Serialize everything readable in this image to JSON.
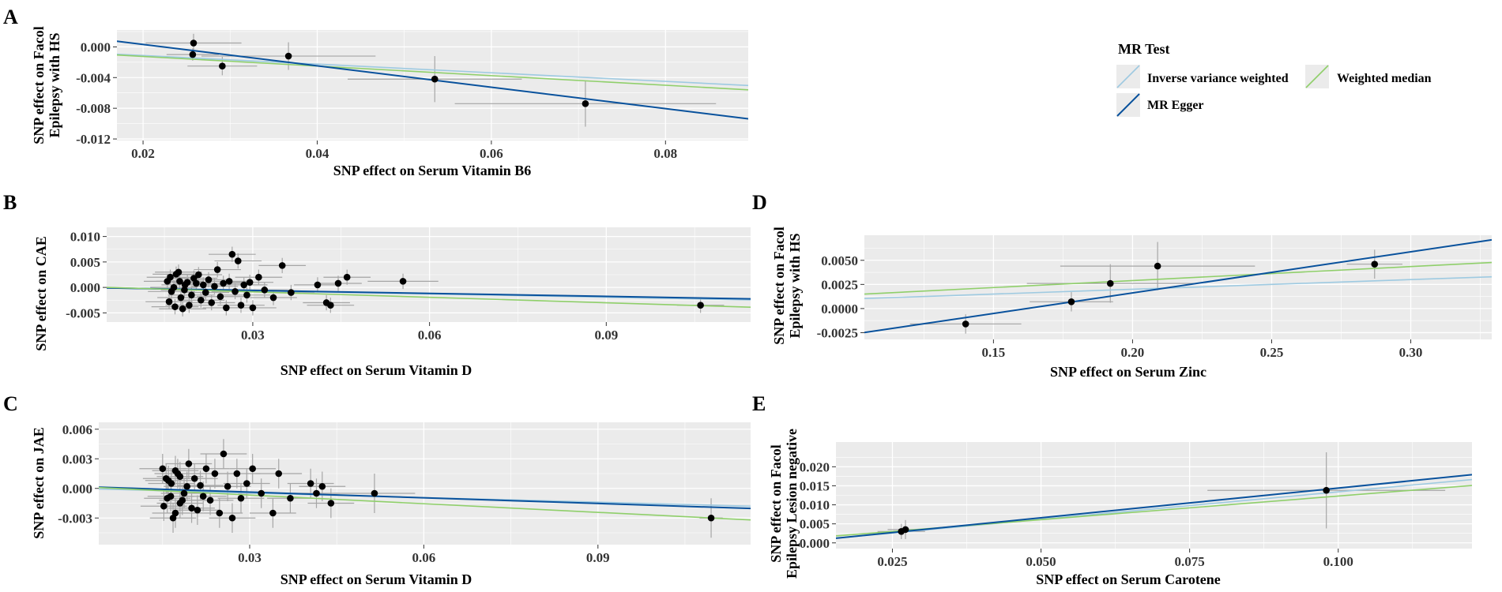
{
  "legend": {
    "title": "MR Test",
    "items": [
      {
        "label": "Inverse variance weighted",
        "color": "#9ecae1"
      },
      {
        "label": "MR Egger",
        "color": "#08519c"
      },
      {
        "label": "Weighted median",
        "color": "#8fcf6a"
      }
    ]
  },
  "colors": {
    "panel_bg": "#ebebeb",
    "grid": "#ffffff",
    "point": "#000000",
    "errorbar": "#a6a6a6"
  },
  "chart_data": [
    {
      "panel": "A",
      "type": "scatter",
      "xlabel": "SNP effect on Serum Vitamin B6",
      "ylabel": [
        "SNP effect on Facol",
        "Epilepsy with HS"
      ],
      "xlim": [
        0.017,
        0.0895
      ],
      "ylim": [
        -0.0122,
        0.0022
      ],
      "xticks": [
        0.02,
        0.04,
        0.06,
        0.08
      ],
      "xtick_labels": [
        "0.02",
        "0.04",
        "0.06",
        "0.08"
      ],
      "yticks": [
        0.0,
        -0.004,
        -0.008,
        -0.012
      ],
      "ytick_labels": [
        "0.000",
        "-0.004",
        "-0.008",
        "-0.012"
      ],
      "points": [
        {
          "x": 0.0258,
          "y": 0.0005,
          "xerr": 0.0055,
          "yerr": 0.0012
        },
        {
          "x": 0.0257,
          "y": -0.001,
          "xerr": 0.003,
          "yerr": 0.0008
        },
        {
          "x": 0.0291,
          "y": -0.0025,
          "xerr": 0.004,
          "yerr": 0.0012
        },
        {
          "x": 0.0367,
          "y": -0.0012,
          "xerr": 0.01,
          "yerr": 0.0018
        },
        {
          "x": 0.0535,
          "y": -0.0042,
          "xerr": 0.01,
          "yerr": 0.003
        },
        {
          "x": 0.0708,
          "y": -0.0074,
          "xerr": 0.015,
          "yerr": 0.003
        }
      ],
      "lines": [
        {
          "method": "Inverse variance weighted",
          "slope": -0.0562,
          "intercept": 0.0
        },
        {
          "method": "Weighted median",
          "slope": -0.0625,
          "intercept": 0.0
        },
        {
          "method": "MR Egger",
          "slope": -0.1393,
          "intercept": 0.0031
        }
      ]
    },
    {
      "panel": "B",
      "type": "scatter",
      "xlabel": "SNP effect on Serum Vitamin D",
      "ylabel": [
        "SNP effect on CAE"
      ],
      "xlim": [
        0.0052,
        0.1145
      ],
      "ylim": [
        -0.0068,
        0.0118
      ],
      "xticks": [
        0.03,
        0.06,
        0.09
      ],
      "xtick_labels": [
        "0.03",
        "0.06",
        "0.09"
      ],
      "yticks": [
        0.01,
        0.005,
        0.0,
        -0.005
      ],
      "ytick_labels": [
        "0.010",
        "0.005",
        "0.000",
        "-0.005"
      ],
      "points": [
        {
          "x": 0.0155,
          "y": 0.0012,
          "xerr": 0.004,
          "yerr": 0.0015
        },
        {
          "x": 0.0162,
          "y": -0.0008,
          "xerr": 0.004,
          "yerr": 0.0015
        },
        {
          "x": 0.017,
          "y": 0.0026,
          "xerr": 0.004,
          "yerr": 0.0015
        },
        {
          "x": 0.0178,
          "y": -0.002,
          "xerr": 0.004,
          "yerr": 0.0015
        },
        {
          "x": 0.0185,
          "y": 0.0005,
          "xerr": 0.004,
          "yerr": 0.0015
        },
        {
          "x": 0.0192,
          "y": -0.0035,
          "xerr": 0.004,
          "yerr": 0.0015
        },
        {
          "x": 0.02,
          "y": 0.0018,
          "xerr": 0.004,
          "yerr": 0.0015
        },
        {
          "x": 0.0158,
          "y": -0.0028,
          "xerr": 0.004,
          "yerr": 0.0015
        },
        {
          "x": 0.0166,
          "y": 0.0,
          "xerr": 0.004,
          "yerr": 0.0015
        },
        {
          "x": 0.0174,
          "y": 0.003,
          "xerr": 0.004,
          "yerr": 0.0015
        },
        {
          "x": 0.0181,
          "y": -0.0042,
          "xerr": 0.004,
          "yerr": 0.0015
        },
        {
          "x": 0.0189,
          "y": 0.001,
          "xerr": 0.004,
          "yerr": 0.0015
        },
        {
          "x": 0.0196,
          "y": -0.0015,
          "xerr": 0.004,
          "yerr": 0.0015
        },
        {
          "x": 0.0204,
          "y": 0.0008,
          "xerr": 0.004,
          "yerr": 0.0015
        },
        {
          "x": 0.016,
          "y": 0.002,
          "xerr": 0.004,
          "yerr": 0.0015
        },
        {
          "x": 0.0168,
          "y": -0.0038,
          "xerr": 0.004,
          "yerr": 0.0015
        },
        {
          "x": 0.0176,
          "y": 0.0012,
          "xerr": 0.004,
          "yerr": 0.0015
        },
        {
          "x": 0.0184,
          "y": -0.0005,
          "xerr": 0.004,
          "yerr": 0.0015
        },
        {
          "x": 0.0208,
          "y": 0.0025,
          "xerr": 0.004,
          "yerr": 0.0015
        },
        {
          "x": 0.0212,
          "y": -0.0025,
          "xerr": 0.004,
          "yerr": 0.0015
        },
        {
          "x": 0.0216,
          "y": 0.0005,
          "xerr": 0.004,
          "yerr": 0.0015
        },
        {
          "x": 0.022,
          "y": -0.001,
          "xerr": 0.004,
          "yerr": 0.0015
        },
        {
          "x": 0.0225,
          "y": 0.0015,
          "xerr": 0.004,
          "yerr": 0.0015
        },
        {
          "x": 0.023,
          "y": -0.003,
          "xerr": 0.004,
          "yerr": 0.0015
        },
        {
          "x": 0.0235,
          "y": 0.0002,
          "xerr": 0.004,
          "yerr": 0.0015
        },
        {
          "x": 0.024,
          "y": 0.0035,
          "xerr": 0.004,
          "yerr": 0.0015
        },
        {
          "x": 0.0245,
          "y": -0.0018,
          "xerr": 0.004,
          "yerr": 0.0015
        },
        {
          "x": 0.025,
          "y": 0.0008,
          "xerr": 0.004,
          "yerr": 0.0015
        },
        {
          "x": 0.0255,
          "y": -0.004,
          "xerr": 0.004,
          "yerr": 0.0015
        },
        {
          "x": 0.026,
          "y": 0.0012,
          "xerr": 0.004,
          "yerr": 0.0015
        },
        {
          "x": 0.0265,
          "y": 0.0065,
          "xerr": 0.004,
          "yerr": 0.0015
        },
        {
          "x": 0.027,
          "y": -0.0008,
          "xerr": 0.004,
          "yerr": 0.0015
        },
        {
          "x": 0.0275,
          "y": 0.0052,
          "xerr": 0.004,
          "yerr": 0.0015
        },
        {
          "x": 0.028,
          "y": -0.0035,
          "xerr": 0.004,
          "yerr": 0.0015
        },
        {
          "x": 0.0285,
          "y": 0.0005,
          "xerr": 0.004,
          "yerr": 0.0015
        },
        {
          "x": 0.029,
          "y": -0.0015,
          "xerr": 0.004,
          "yerr": 0.0015
        },
        {
          "x": 0.0295,
          "y": 0.001,
          "xerr": 0.004,
          "yerr": 0.0015
        },
        {
          "x": 0.03,
          "y": -0.004,
          "xerr": 0.004,
          "yerr": 0.0015
        },
        {
          "x": 0.031,
          "y": 0.002,
          "xerr": 0.004,
          "yerr": 0.0015
        },
        {
          "x": 0.032,
          "y": -0.0005,
          "xerr": 0.004,
          "yerr": 0.0015
        },
        {
          "x": 0.0335,
          "y": -0.002,
          "xerr": 0.004,
          "yerr": 0.0015
        },
        {
          "x": 0.035,
          "y": 0.0043,
          "xerr": 0.004,
          "yerr": 0.0015
        },
        {
          "x": 0.0365,
          "y": -0.001,
          "xerr": 0.004,
          "yerr": 0.0015
        },
        {
          "x": 0.041,
          "y": 0.0005,
          "xerr": 0.004,
          "yerr": 0.0015
        },
        {
          "x": 0.0425,
          "y": -0.003,
          "xerr": 0.004,
          "yerr": 0.0015
        },
        {
          "x": 0.0432,
          "y": -0.0035,
          "xerr": 0.004,
          "yerr": 0.0015
        },
        {
          "x": 0.0445,
          "y": 0.0008,
          "xerr": 0.004,
          "yerr": 0.0015
        },
        {
          "x": 0.046,
          "y": 0.002,
          "xerr": 0.004,
          "yerr": 0.0015
        },
        {
          "x": 0.0555,
          "y": 0.0012,
          "xerr": 0.006,
          "yerr": 0.0015
        },
        {
          "x": 0.106,
          "y": -0.0035,
          "xerr": 0.004,
          "yerr": 0.0015
        }
      ],
      "lines": [
        {
          "method": "Inverse variance weighted",
          "slope": -0.0214,
          "intercept": 0.0
        },
        {
          "method": "MR Egger",
          "slope": -0.0196,
          "intercept": 0.0
        },
        {
          "method": "Weighted median",
          "slope": -0.0357,
          "intercept": 0.0002
        }
      ]
    },
    {
      "panel": "C",
      "type": "scatter",
      "xlabel": "SNP effect on Serum Vitamin D",
      "ylabel": [
        "SNP effect on JAE"
      ],
      "xlim": [
        0.004,
        0.1163
      ],
      "ylim": [
        -0.0057,
        0.0067
      ],
      "xticks": [
        0.03,
        0.06,
        0.09
      ],
      "xtick_labels": [
        "0.03",
        "0.06",
        "0.09"
      ],
      "yticks": [
        0.006,
        0.003,
        0.0,
        -0.003
      ],
      "ytick_labels": [
        "0.006",
        "0.003",
        "0.000",
        "-0.003"
      ],
      "points": [
        {
          "x": 0.015,
          "y": 0.002,
          "xerr": 0.004,
          "yerr": 0.0015
        },
        {
          "x": 0.0158,
          "y": -0.001,
          "xerr": 0.004,
          "yerr": 0.0015
        },
        {
          "x": 0.0165,
          "y": 0.0005,
          "xerr": 0.004,
          "yerr": 0.0015
        },
        {
          "x": 0.0172,
          "y": -0.0025,
          "xerr": 0.004,
          "yerr": 0.0015
        },
        {
          "x": 0.018,
          "y": 0.0012,
          "xerr": 0.004,
          "yerr": 0.0015
        },
        {
          "x": 0.0187,
          "y": -0.0005,
          "xerr": 0.004,
          "yerr": 0.0015
        },
        {
          "x": 0.0195,
          "y": 0.0025,
          "xerr": 0.004,
          "yerr": 0.0015
        },
        {
          "x": 0.0152,
          "y": -0.0018,
          "xerr": 0.004,
          "yerr": 0.0015
        },
        {
          "x": 0.016,
          "y": 0.0008,
          "xerr": 0.004,
          "yerr": 0.0015
        },
        {
          "x": 0.0168,
          "y": -0.003,
          "xerr": 0.004,
          "yerr": 0.0015
        },
        {
          "x": 0.0176,
          "y": 0.0015,
          "xerr": 0.004,
          "yerr": 0.0015
        },
        {
          "x": 0.0184,
          "y": -0.0012,
          "xerr": 0.004,
          "yerr": 0.0015
        },
        {
          "x": 0.0192,
          "y": 0.0002,
          "xerr": 0.004,
          "yerr": 0.0015
        },
        {
          "x": 0.02,
          "y": -0.002,
          "xerr": 0.004,
          "yerr": 0.0015
        },
        {
          "x": 0.0156,
          "y": 0.001,
          "xerr": 0.004,
          "yerr": 0.0015
        },
        {
          "x": 0.0164,
          "y": -0.0008,
          "xerr": 0.004,
          "yerr": 0.0015
        },
        {
          "x": 0.0172,
          "y": 0.0018,
          "xerr": 0.004,
          "yerr": 0.0015
        },
        {
          "x": 0.018,
          "y": -0.0015,
          "xerr": 0.004,
          "yerr": 0.0015
        },
        {
          "x": 0.0205,
          "y": 0.001,
          "xerr": 0.004,
          "yerr": 0.0015
        },
        {
          "x": 0.021,
          "y": -0.0022,
          "xerr": 0.004,
          "yerr": 0.0015
        },
        {
          "x": 0.0215,
          "y": 0.0003,
          "xerr": 0.004,
          "yerr": 0.0015
        },
        {
          "x": 0.022,
          "y": -0.0008,
          "xerr": 0.004,
          "yerr": 0.0015
        },
        {
          "x": 0.0225,
          "y": 0.002,
          "xerr": 0.004,
          "yerr": 0.0015
        },
        {
          "x": 0.0232,
          "y": -0.0012,
          "xerr": 0.004,
          "yerr": 0.0015
        },
        {
          "x": 0.024,
          "y": 0.0015,
          "xerr": 0.004,
          "yerr": 0.0015
        },
        {
          "x": 0.0248,
          "y": -0.0025,
          "xerr": 0.004,
          "yerr": 0.0015
        },
        {
          "x": 0.0255,
          "y": 0.0035,
          "xerr": 0.004,
          "yerr": 0.0015
        },
        {
          "x": 0.0262,
          "y": 0.0002,
          "xerr": 0.004,
          "yerr": 0.0015
        },
        {
          "x": 0.027,
          "y": -0.003,
          "xerr": 0.004,
          "yerr": 0.0015
        },
        {
          "x": 0.0278,
          "y": 0.0015,
          "xerr": 0.004,
          "yerr": 0.0015
        },
        {
          "x": 0.0285,
          "y": -0.001,
          "xerr": 0.004,
          "yerr": 0.0015
        },
        {
          "x": 0.0295,
          "y": 0.0005,
          "xerr": 0.004,
          "yerr": 0.0015
        },
        {
          "x": 0.0305,
          "y": 0.002,
          "xerr": 0.004,
          "yerr": 0.0015
        },
        {
          "x": 0.032,
          "y": -0.0005,
          "xerr": 0.004,
          "yerr": 0.0015
        },
        {
          "x": 0.034,
          "y": -0.0025,
          "xerr": 0.004,
          "yerr": 0.0015
        },
        {
          "x": 0.035,
          "y": 0.0015,
          "xerr": 0.004,
          "yerr": 0.0015
        },
        {
          "x": 0.037,
          "y": -0.001,
          "xerr": 0.004,
          "yerr": 0.0015
        },
        {
          "x": 0.0405,
          "y": 0.0005,
          "xerr": 0.004,
          "yerr": 0.0015
        },
        {
          "x": 0.0415,
          "y": -0.0005,
          "xerr": 0.004,
          "yerr": 0.0015
        },
        {
          "x": 0.0425,
          "y": 0.0002,
          "xerr": 0.004,
          "yerr": 0.0015
        },
        {
          "x": 0.044,
          "y": -0.0015,
          "xerr": 0.004,
          "yerr": 0.0015
        },
        {
          "x": 0.0515,
          "y": -0.0005,
          "xerr": 0.007,
          "yerr": 0.002
        },
        {
          "x": 0.1095,
          "y": -0.003,
          "xerr": 0.002,
          "yerr": 0.002
        }
      ],
      "lines": [
        {
          "method": "Inverse variance weighted",
          "slope": -0.0155,
          "intercept": 0.0
        },
        {
          "method": "MR Egger",
          "slope": -0.0192,
          "intercept": 0.0002
        },
        {
          "method": "Weighted median",
          "slope": -0.0292,
          "intercept": 0.0002
        }
      ]
    },
    {
      "panel": "D",
      "type": "scatter",
      "xlabel": "SNP effect on Serum Zinc",
      "ylabel": [
        "SNP effect on Facol",
        "Epilepsy with HS"
      ],
      "xlim": [
        0.1036,
        0.3291
      ],
      "ylim": [
        -0.0032,
        0.0076
      ],
      "xticks": [
        0.15,
        0.2,
        0.25,
        0.3
      ],
      "xtick_labels": [
        "0.15",
        "0.20",
        "0.25",
        "0.30"
      ],
      "yticks": [
        0.005,
        0.0025,
        0.0,
        -0.0025
      ],
      "ytick_labels": [
        "0.0050",
        "0.0025",
        "0.0000",
        "-0.0025"
      ],
      "points": [
        {
          "x": 0.14,
          "y": -0.0016,
          "xerr": 0.02,
          "yerr": 0.001
        },
        {
          "x": 0.178,
          "y": 0.0007,
          "xerr": 0.015,
          "yerr": 0.001
        },
        {
          "x": 0.192,
          "y": 0.0026,
          "xerr": 0.03,
          "yerr": 0.002
        },
        {
          "x": 0.209,
          "y": 0.0044,
          "xerr": 0.035,
          "yerr": 0.0025
        },
        {
          "x": 0.287,
          "y": 0.0046,
          "xerr": 0.01,
          "yerr": 0.0015
        }
      ],
      "lines": [
        {
          "method": "Inverse variance weighted",
          "slope": 0.01,
          "intercept": 0.0
        },
        {
          "method": "Weighted median",
          "slope": 0.0145,
          "intercept": 0.0
        },
        {
          "method": "MR Egger",
          "slope": 0.0426,
          "intercept": -0.0069
        }
      ]
    },
    {
      "panel": "E",
      "type": "scatter",
      "xlabel": "SNP effect on Serum Carotene",
      "ylabel": [
        "SNP effect on Facol",
        "Epilepsy Lesion negative"
      ],
      "xlim": [
        0.0155,
        0.1225
      ],
      "ylim": [
        -0.0015,
        0.0265
      ],
      "xticks": [
        0.025,
        0.05,
        0.075,
        0.1
      ],
      "xtick_labels": [
        "0.025",
        "0.050",
        "0.075",
        "0.100"
      ],
      "yticks": [
        0.02,
        0.015,
        0.01,
        0.005,
        0.0
      ],
      "ytick_labels": [
        "0.020",
        "0.015",
        "0.010",
        "0.005",
        "0.000"
      ],
      "points": [
        {
          "x": 0.0265,
          "y": 0.003,
          "xerr": 0.004,
          "yerr": 0.002
        },
        {
          "x": 0.0272,
          "y": 0.0035,
          "xerr": 0.003,
          "yerr": 0.0025
        },
        {
          "x": 0.098,
          "y": 0.0138,
          "xerr": 0.02,
          "yerr": 0.01
        }
      ],
      "lines": [
        {
          "method": "Inverse variance weighted",
          "slope": 0.144,
          "intercept": -0.001
        },
        {
          "method": "Weighted median",
          "slope": 0.124,
          "intercept": -0.0001
        },
        {
          "method": "MR Egger",
          "slope": 0.156,
          "intercept": -0.0012
        }
      ]
    }
  ]
}
